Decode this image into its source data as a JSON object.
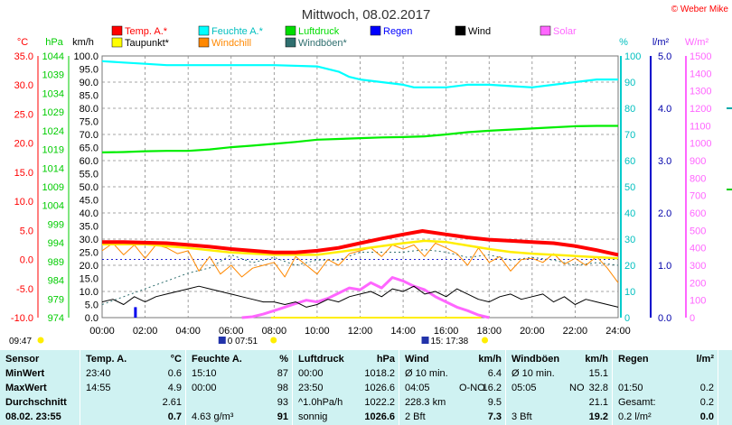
{
  "chart_data": {
    "type": "line",
    "title": "Mittwoch, 08.02.2017",
    "copyright": "© Weber Mike",
    "legend": [
      {
        "name": "Temp. A.*",
        "color": "#ff0000"
      },
      {
        "name": "Feuchte A.*",
        "color": "#00ffff"
      },
      {
        "name": "Luftdruck",
        "color": "#00dd00"
      },
      {
        "name": "Regen",
        "color": "#0000ff"
      },
      {
        "name": "Wind",
        "color": "#000000"
      },
      {
        "name": "Solar",
        "color": "#ff66ff"
      },
      {
        "name": "Taupunkt*",
        "color": "#ffff00"
      },
      {
        "name": "Windchill",
        "color": "#ff8800"
      },
      {
        "name": "Windböen*",
        "color": "#2f6f6f"
      }
    ],
    "axes": {
      "temp": {
        "unit": "°C",
        "range": [
          -10,
          35
        ],
        "ticks": [
          "35.0",
          "30.0",
          "25.0",
          "20.0",
          "15.0",
          "10.0",
          "5.0",
          "0.0",
          "-5.0",
          "-10.0"
        ],
        "color": "#ff0000"
      },
      "pressure": {
        "unit": "hPa",
        "range": [
          974,
          1044
        ],
        "ticks": [
          "1044",
          "1039",
          "1034",
          "1029",
          "1024",
          "1019",
          "1014",
          "1009",
          "1004",
          "999",
          "994",
          "989",
          "984",
          "979",
          "974"
        ],
        "color": "#00cc00"
      },
      "wind": {
        "unit": "km/h",
        "range": [
          0,
          100
        ],
        "ticks": [
          "100.0",
          "95.0",
          "90.0",
          "85.0",
          "80.0",
          "75.0",
          "70.0",
          "65.0",
          "60.0",
          "55.0",
          "50.0",
          "45.0",
          "40.0",
          "35.0",
          "30.0",
          "25.0",
          "20.0",
          "15.0",
          "10.0",
          "5.0",
          "0.0"
        ],
        "color": "#000000"
      },
      "humidity": {
        "unit": "%",
        "range": [
          0,
          100
        ],
        "ticks": [
          "100",
          "90",
          "80",
          "70",
          "60",
          "50",
          "40",
          "30",
          "20",
          "10",
          "0"
        ],
        "color": "#00cccc"
      },
      "rain": {
        "unit": "l/m²",
        "range": [
          0,
          5
        ],
        "ticks": [
          "5.0",
          "4.0",
          "3.0",
          "2.0",
          "1.0",
          "0.0"
        ],
        "color": "#0000cc"
      },
      "solar": {
        "unit": "W/m²",
        "range": [
          0,
          1500
        ],
        "ticks": [
          "1500",
          "1400",
          "1300",
          "1200",
          "1100",
          "1000",
          "900",
          "800",
          "700",
          "600",
          "500",
          "400",
          "300",
          "200",
          "100",
          "0"
        ],
        "color": "#ff66ff"
      },
      "x": {
        "range": [
          0,
          24
        ],
        "ticks": [
          "00:00",
          "02:00",
          "04:00",
          "06:00",
          "08:00",
          "10:00",
          "12:00",
          "14:00",
          "16:00",
          "18:00",
          "20:00",
          "22:00",
          "24:00"
        ]
      }
    },
    "series": [
      {
        "name": "Temp. A.*",
        "axis": "temp",
        "x": [
          0,
          1,
          2,
          3,
          4,
          5,
          6,
          7,
          8,
          9,
          10,
          11,
          12,
          13,
          14,
          14.9,
          16,
          17,
          18,
          19,
          20,
          21,
          22,
          23,
          24
        ],
        "y": [
          3.0,
          3.0,
          2.9,
          2.8,
          2.5,
          2.2,
          1.8,
          1.5,
          1.2,
          1.2,
          1.5,
          2.0,
          2.8,
          3.6,
          4.3,
          4.9,
          4.3,
          3.8,
          3.4,
          3.2,
          3.0,
          2.8,
          2.3,
          1.6,
          0.8
        ]
      },
      {
        "name": "Feuchte A.*",
        "axis": "humidity",
        "x": [
          0,
          1,
          2,
          3,
          4,
          6,
          8,
          10,
          11,
          11.5,
          12,
          13,
          14,
          14.5,
          15,
          16,
          17,
          18,
          19,
          20,
          21,
          22,
          23,
          24
        ],
        "y": [
          98,
          97.5,
          97,
          96.5,
          96.5,
          96.5,
          96.5,
          96,
          94,
          92,
          91,
          90,
          89,
          88,
          88,
          88,
          89,
          89,
          88.5,
          88,
          89,
          90,
          91,
          91
        ]
      },
      {
        "name": "Luftdruck",
        "axis": "pressure",
        "x": [
          0,
          1,
          2,
          3,
          4,
          5,
          6,
          7,
          8,
          9,
          10,
          11,
          12,
          13,
          14,
          15,
          16,
          17,
          18,
          19,
          20,
          21,
          22,
          23,
          24
        ],
        "y": [
          1018.2,
          1018.3,
          1018.5,
          1018.6,
          1018.6,
          1019.0,
          1019.6,
          1020.0,
          1020.5,
          1021.0,
          1021.6,
          1021.8,
          1022.0,
          1022.2,
          1022.3,
          1022.5,
          1023.0,
          1023.6,
          1024.0,
          1024.3,
          1024.6,
          1024.9,
          1025.2,
          1025.3,
          1025.3
        ]
      },
      {
        "name": "Taupunkt*",
        "axis": "temp",
        "x": [
          0,
          2,
          4,
          6,
          8,
          10,
          12,
          14,
          15,
          16,
          17,
          18,
          19,
          20,
          21,
          22,
          23,
          24
        ],
        "y": [
          2.6,
          2.6,
          2.0,
          1.2,
          0.8,
          0.8,
          1.8,
          2.8,
          3.2,
          3.0,
          2.4,
          1.8,
          1.3,
          1.0,
          0.8,
          0.6,
          0.4,
          0.2
        ]
      },
      {
        "name": "Windchill",
        "axis": "temp",
        "x": [
          0,
          0.5,
          1,
          1.5,
          2,
          2.5,
          3,
          3.5,
          4,
          4.5,
          5,
          5.5,
          6,
          6.5,
          7,
          7.5,
          8,
          8.5,
          9,
          9.5,
          10,
          10.5,
          11,
          11.5,
          12,
          12.5,
          13,
          13.5,
          14,
          14.5,
          15,
          15.5,
          16,
          16.5,
          17,
          17.5,
          18,
          18.5,
          19,
          19.5,
          20,
          20.5,
          21,
          21.5,
          22,
          22.5,
          23,
          23.5,
          24
        ],
        "y": [
          1.5,
          2.8,
          0.8,
          2.5,
          0.2,
          2.5,
          2.0,
          1.0,
          1.5,
          -2.0,
          0.5,
          -2.5,
          -1.0,
          -3.0,
          -1.5,
          -1.0,
          -0.5,
          -3.0,
          0.5,
          -1.0,
          -2.5,
          0.0,
          -1.0,
          1.0,
          1.5,
          2.0,
          0.5,
          2.5,
          1.8,
          2.5,
          0.5,
          2.8,
          2.0,
          1.0,
          -1.0,
          2.0,
          -0.5,
          0.5,
          -2.0,
          0.0,
          0.2,
          -0.5,
          1.0,
          -0.8,
          0.2,
          -1.0,
          0.5,
          -1.5,
          -4.0
        ]
      },
      {
        "name": "Wind",
        "axis": "wind",
        "x": [
          0,
          0.5,
          1,
          1.5,
          2,
          2.5,
          3,
          3.5,
          4,
          4.5,
          5,
          5.5,
          6,
          6.5,
          7,
          7.5,
          8,
          8.5,
          9,
          9.5,
          10,
          10.5,
          11,
          11.5,
          12,
          12.5,
          13,
          13.5,
          14,
          14.5,
          15,
          15.5,
          16,
          16.5,
          17,
          17.5,
          18,
          18.5,
          19,
          19.5,
          20,
          20.5,
          21,
          21.5,
          22,
          22.5,
          23,
          23.5,
          24
        ],
        "y": [
          6,
          7,
          5,
          8,
          6,
          8,
          9,
          10,
          11,
          12,
          11,
          10,
          9,
          8,
          7,
          6,
          6,
          5,
          6,
          4,
          5,
          7,
          6,
          8,
          9,
          10,
          8,
          11,
          10,
          12,
          9,
          10,
          8,
          11,
          9,
          7,
          6,
          8,
          9,
          7,
          8,
          9,
          6,
          8,
          5,
          7,
          6,
          5,
          4
        ]
      },
      {
        "name": "Windböen*",
        "axis": "wind",
        "x": [
          0,
          1,
          2,
          3,
          4,
          5,
          6,
          7,
          8,
          9,
          10,
          11,
          12,
          13,
          14,
          15,
          16,
          17,
          18,
          19,
          20,
          21,
          22,
          23,
          24
        ],
        "y": [
          5,
          8,
          11,
          14,
          17,
          19,
          24,
          21,
          23,
          20,
          22,
          22,
          25,
          25,
          25,
          26,
          25,
          23,
          24,
          22,
          23,
          22,
          20,
          21,
          20
        ]
      },
      {
        "name": "Solar",
        "axis": "solar",
        "x": [
          6.5,
          7,
          7.5,
          8,
          8.5,
          9,
          9.5,
          10,
          10.5,
          11,
          11.5,
          12,
          12.5,
          13,
          13.5,
          14,
          14.5,
          15,
          15.5,
          16,
          16.5,
          17,
          17.5,
          18
        ],
        "y": [
          0,
          5,
          20,
          40,
          60,
          80,
          100,
          90,
          110,
          140,
          170,
          160,
          200,
          170,
          230,
          210,
          180,
          160,
          120,
          90,
          60,
          40,
          15,
          0
        ]
      },
      {
        "name": "Regen",
        "axis": "rain",
        "x": [
          1.55
        ],
        "y": [
          0.2
        ]
      }
    ],
    "daylight": {
      "sunrise": "07:51",
      "sunset": "17:38"
    },
    "markers": {
      "left_time": "09:47"
    }
  },
  "stats_table": {
    "sensor": {
      "header": "Sensor",
      "rows": [
        "MinWert",
        "MaxWert",
        "Durchschnitt",
        "08.02. 23:55"
      ]
    },
    "temp": {
      "header": "Temp. A.",
      "unit": "°C",
      "rows": [
        [
          "23:40",
          "0.6"
        ],
        [
          "14:55",
          "4.9"
        ],
        [
          "",
          "2.61"
        ],
        [
          "",
          "0.7"
        ]
      ]
    },
    "humidity": {
      "header": "Feuchte A.",
      "unit": "%",
      "rows": [
        [
          "15:10",
          "87"
        ],
        [
          "00:00",
          "98"
        ],
        [
          "",
          "93"
        ],
        [
          "4.63 g/m³",
          "91"
        ]
      ]
    },
    "pressure": {
      "header": "Luftdruck",
      "unit": "hPa",
      "rows": [
        [
          "00:00",
          "1018.2"
        ],
        [
          "23:50",
          "1026.6"
        ],
        [
          "^1.0hPa/h",
          "1022.2"
        ],
        [
          "sonnig",
          "1026.6"
        ]
      ]
    },
    "wind": {
      "header": "Wind",
      "unit": "km/h",
      "rows": [
        [
          "Ø 10 min.",
          "",
          "6.4"
        ],
        [
          "04:05",
          "O-NO",
          "16.2"
        ],
        [
          "228.3 km",
          "",
          "9.5"
        ],
        [
          "2 Bft",
          "",
          "7.3"
        ]
      ]
    },
    "gusts": {
      "header": "Windböen",
      "unit": "km/h",
      "rows": [
        [
          "Ø 10 min.",
          "",
          "15.1"
        ],
        [
          "05:05",
          "NO",
          "32.8"
        ],
        [
          "",
          "",
          "21.1"
        ],
        [
          "3 Bft",
          "",
          "19.2"
        ]
      ]
    },
    "rain": {
      "header": "Regen",
      "unit": "l/m²",
      "rows": [
        [
          "",
          ""
        ],
        [
          "01:50",
          "0.2"
        ],
        [
          "Gesamt:",
          "0.2"
        ],
        [
          "0.2 l/m²",
          "0.0"
        ]
      ]
    }
  }
}
